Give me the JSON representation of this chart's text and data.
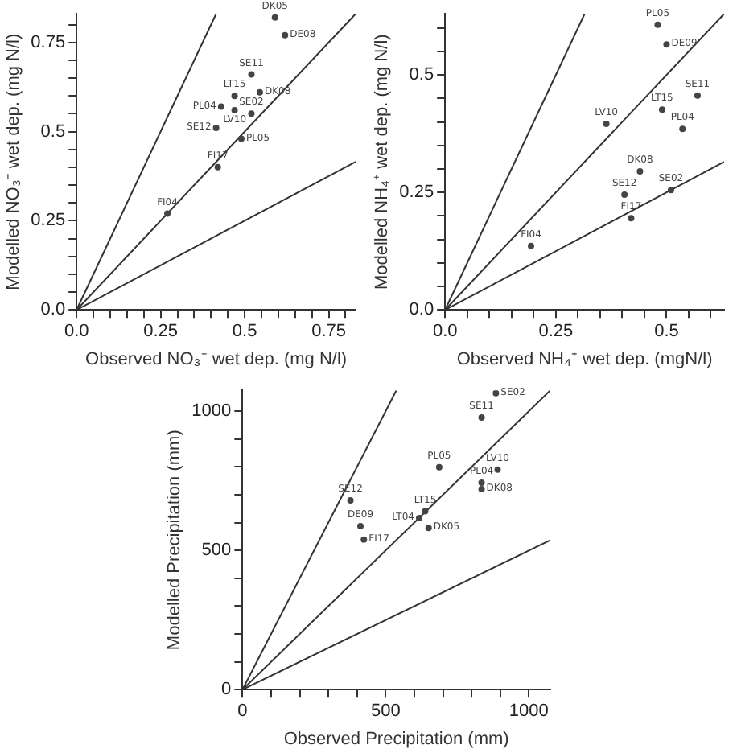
{
  "chart_data": [
    {
      "type": "scatter",
      "xlabel": "Observed NO₃⁻ wet dep. (mg N/l)",
      "ylabel": "Modelled NO₃⁻ wet dep. (mg N/l)",
      "xlim": [
        0,
        0.83
      ],
      "ylim": [
        0,
        0.83
      ],
      "xticks": [
        {
          "value": 0,
          "label": "0.0"
        },
        {
          "value": 0.05,
          "label": null
        },
        {
          "value": 0.1,
          "label": null
        },
        {
          "value": 0.15,
          "label": null
        },
        {
          "value": 0.2,
          "label": null
        },
        0.25,
        {
          "value": 0.3,
          "label": null
        },
        {
          "value": 0.35,
          "label": null
        },
        {
          "value": 0.4,
          "label": null
        },
        {
          "value": 0.45,
          "label": null
        },
        0.5,
        {
          "value": 0.55,
          "label": null
        },
        {
          "value": 0.6,
          "label": null
        },
        {
          "value": 0.65,
          "label": null
        },
        {
          "value": 0.7,
          "label": null
        },
        0.75,
        {
          "value": 0.8,
          "label": null
        }
      ],
      "yticks": [
        {
          "value": 0,
          "label": "0.0"
        },
        {
          "value": 0.05,
          "label": null
        },
        {
          "value": 0.1,
          "label": null
        },
        {
          "value": 0.15,
          "label": null
        },
        {
          "value": 0.2,
          "label": null
        },
        0.25,
        {
          "value": 0.3,
          "label": null
        },
        {
          "value": 0.35,
          "label": null
        },
        {
          "value": 0.4,
          "label": null
        },
        {
          "value": 0.45,
          "label": null
        },
        0.5,
        {
          "value": 0.55,
          "label": null
        },
        {
          "value": 0.6,
          "label": null
        },
        {
          "value": 0.65,
          "label": null
        },
        {
          "value": 0.7,
          "label": null
        },
        0.75,
        {
          "value": 0.8,
          "label": null
        }
      ],
      "series": [
        {
          "marker": "circle",
          "color": "#444444",
          "x": [
            0.59,
            0.62,
            0.52,
            0.545,
            0.47,
            0.43,
            0.47,
            0.52,
            0.415,
            0.49,
            0.42,
            0.27
          ],
          "values": [
            0.82,
            0.77,
            0.66,
            0.61,
            0.6,
            0.57,
            0.56,
            0.55,
            0.51,
            0.48,
            0.4,
            0.27
          ],
          "value_labels": [
            "DK05",
            "DE08",
            "SE11",
            "DK08",
            "LT15",
            "PL04",
            "LV10",
            "SE02",
            "SE12",
            "PL05",
            "FI17",
            "FI04"
          ]
        },
        {
          "type": "line",
          "color": "#333333",
          "x": [
            0,
            0.415
          ],
          "values": [
            0,
            0.83
          ]
        },
        {
          "type": "line",
          "color": "#333333",
          "x": [
            0,
            0.83
          ],
          "values": [
            0,
            0.83
          ]
        },
        {
          "type": "line",
          "color": "#333333",
          "x": [
            0,
            0.83
          ],
          "values": [
            0,
            0.415
          ]
        }
      ]
    },
    {
      "type": "scatter",
      "xlabel": "Observed NH₄⁺ wet dep. (mgN/l)",
      "ylabel": "Modelled NH₄⁺ wet dep. (mg N/l)",
      "xlim": [
        0,
        0.63
      ],
      "ylim": [
        0,
        0.63
      ],
      "xticks": [
        {
          "value": 0,
          "label": "0.0"
        },
        {
          "value": 0.05,
          "label": null
        },
        {
          "value": 0.1,
          "label": null
        },
        {
          "value": 0.15,
          "label": null
        },
        {
          "value": 0.2,
          "label": null
        },
        0.25,
        {
          "value": 0.3,
          "label": null
        },
        {
          "value": 0.35,
          "label": null
        },
        {
          "value": 0.4,
          "label": null
        },
        {
          "value": 0.45,
          "label": null
        },
        0.5,
        {
          "value": 0.55,
          "label": null
        },
        {
          "value": 0.6,
          "label": null
        }
      ],
      "yticks": [
        {
          "value": 0,
          "label": "0.0"
        },
        {
          "value": 0.05,
          "label": null
        },
        {
          "value": 0.1,
          "label": null
        },
        {
          "value": 0.15,
          "label": null
        },
        {
          "value": 0.2,
          "label": null
        },
        0.25,
        {
          "value": 0.3,
          "label": null
        },
        {
          "value": 0.35,
          "label": null
        },
        {
          "value": 0.4,
          "label": null
        },
        {
          "value": 0.45,
          "label": null
        },
        0.5,
        {
          "value": 0.55,
          "label": null
        },
        {
          "value": 0.6,
          "label": null
        }
      ],
      "series": [
        {
          "marker": "circle",
          "color": "#444444",
          "x": [
            0.48,
            0.5,
            0.57,
            0.49,
            0.364,
            0.536,
            0.44,
            0.405,
            0.51,
            0.42,
            0.194
          ],
          "values": [
            0.607,
            0.565,
            0.456,
            0.426,
            0.396,
            0.385,
            0.295,
            0.245,
            0.255,
            0.195,
            0.136
          ],
          "value_labels": [
            "PL05",
            "DE09",
            "SE11",
            "LT15",
            "LV10",
            "PL04",
            "DK08",
            "SE12",
            "SE02",
            "FI17",
            "FI04"
          ]
        },
        {
          "type": "line",
          "color": "#333333",
          "x": [
            0,
            0.315
          ],
          "values": [
            0,
            0.63
          ]
        },
        {
          "type": "line",
          "color": "#333333",
          "x": [
            0,
            0.63
          ],
          "values": [
            0,
            0.63
          ]
        },
        {
          "type": "line",
          "color": "#333333",
          "x": [
            0,
            0.63
          ],
          "values": [
            0,
            0.315
          ]
        }
      ]
    },
    {
      "type": "scatter",
      "xlabel": "Observed Precipitation (mm)",
      "ylabel": "Modelled Precipitation (mm)",
      "xlim": [
        0,
        1075
      ],
      "ylim": [
        0,
        1075
      ],
      "xticks": [
        0,
        {
          "value": 100,
          "label": null
        },
        {
          "value": 200,
          "label": null
        },
        {
          "value": 300,
          "label": null
        },
        {
          "value": 400,
          "label": null
        },
        500,
        {
          "value": 600,
          "label": null
        },
        {
          "value": 700,
          "label": null
        },
        {
          "value": 800,
          "label": null
        },
        {
          "value": 900,
          "label": null
        },
        1000
      ],
      "yticks": [
        0,
        {
          "value": 100,
          "label": null
        },
        {
          "value": 200,
          "label": null
        },
        {
          "value": 300,
          "label": null
        },
        {
          "value": 400,
          "label": null
        },
        500,
        {
          "value": 600,
          "label": null
        },
        {
          "value": 700,
          "label": null
        },
        {
          "value": 800,
          "label": null
        },
        {
          "value": 900,
          "label": null
        },
        1000
      ],
      "series": [
        {
          "marker": "circle",
          "color": "#444444",
          "x": [
            885,
            835,
            687,
            891,
            835,
            835,
            377,
            638,
            617,
            650,
            412,
            424
          ],
          "values": [
            1065,
            977,
            799,
            790,
            743,
            720,
            680,
            641,
            616,
            581,
            587,
            539
          ],
          "value_labels": [
            "SE02",
            "SE11",
            "PL05",
            "LV10",
            "PL04",
            "DK08",
            "SE12",
            "LT15",
            "LT04",
            "DK05",
            "DE09",
            "FI17"
          ]
        },
        {
          "type": "line",
          "color": "#333333",
          "x": [
            0,
            537
          ],
          "values": [
            0,
            1074
          ]
        },
        {
          "type": "line",
          "color": "#333333",
          "x": [
            0,
            1075
          ],
          "values": [
            0,
            1075
          ]
        },
        {
          "type": "line",
          "color": "#333333",
          "x": [
            0,
            1075
          ],
          "values": [
            0,
            537
          ]
        }
      ]
    }
  ]
}
